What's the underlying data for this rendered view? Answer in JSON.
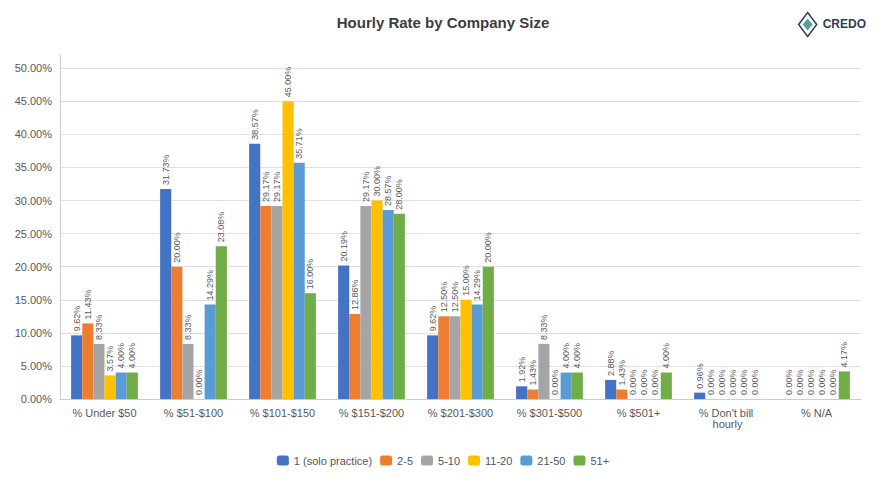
{
  "chart_data": {
    "type": "bar",
    "title": "Hourly Rate by Company Size",
    "categories": [
      "% Under $50",
      "% $51-$100",
      "% $101-$150",
      "% $151-$200",
      "% $201-$300",
      "% $301-$500",
      "% $501+",
      "% Don't bill hourly",
      "% N/A"
    ],
    "series": [
      {
        "name": "1 (solo practice)",
        "color": "#4472c4",
        "values": [
          0.0962,
          0.3173,
          0.3857,
          0.2019,
          0.0962,
          0.0192,
          0.0288,
          0.0096,
          0
        ],
        "value_labels": [
          "9.62%",
          "31.73%",
          "38.57%",
          "20.19%",
          "9.62%",
          "1.92%",
          "2.88%",
          "0.96%",
          "0.00%"
        ]
      },
      {
        "name": "2-5",
        "color": "#ed7d31",
        "values": [
          0.1143,
          0.2,
          0.2917,
          0.1286,
          0.125,
          0.0143,
          0.0143,
          0,
          0
        ],
        "value_labels": [
          "11.43%",
          "20.00%",
          "29.17%",
          "12.86%",
          "12.50%",
          "1.43%",
          "1.43%",
          "0.00%",
          "0.00%"
        ]
      },
      {
        "name": "5-10",
        "color": "#a5a5a5",
        "values": [
          0.0833,
          0.0833,
          0.2917,
          0.2917,
          0.125,
          0.0833,
          0,
          0,
          0
        ],
        "value_labels": [
          "8.33%",
          "8.33%",
          "29.17%",
          "29.17%",
          "12.50%",
          "8.33%",
          "0.00%",
          "0.00%",
          "0.00%"
        ]
      },
      {
        "name": "11-20",
        "color": "#ffc000",
        "values": [
          0.0357,
          0,
          0.45,
          0.3,
          0.15,
          0,
          0,
          0,
          0
        ],
        "value_labels": [
          "3.57%",
          "0.00%",
          "45.00%",
          "30.00%",
          "15.00%",
          "0.00%",
          "0.00%",
          "0.00%",
          "0.00%"
        ]
      },
      {
        "name": "21-50",
        "color": "#5b9bd5",
        "values": [
          0.04,
          0.1429,
          0.3571,
          0.2857,
          0.1429,
          0.04,
          0,
          0,
          0
        ],
        "value_labels": [
          "4.00%",
          "14.29%",
          "35.71%",
          "28.57%",
          "14.29%",
          "4.00%",
          "0.00%",
          "0.00%",
          "0.00%"
        ]
      },
      {
        "name": "51+",
        "color": "#70ad47",
        "values": [
          0.04,
          0.2308,
          0.16,
          0.28,
          0.2,
          0.04,
          0.04,
          0,
          0.0417
        ],
        "value_labels": [
          "4.00%",
          "23.08%",
          "16.00%",
          "28.00%",
          "20.00%",
          "4.00%",
          "4.00%",
          "0.00%",
          "4.17%"
        ]
      }
    ],
    "ylim": [
      0,
      0.52
    ],
    "yticks": [
      {
        "value": 0.0,
        "label": "0.00%"
      },
      {
        "value": 0.05,
        "label": "5.00%"
      },
      {
        "value": 0.1,
        "label": "10.00%"
      },
      {
        "value": 0.15,
        "label": "15.00%"
      },
      {
        "value": 0.2,
        "label": "20.00%"
      },
      {
        "value": 0.25,
        "label": "25.00%"
      },
      {
        "value": 0.3,
        "label": "30.00%"
      },
      {
        "value": 0.35,
        "label": "35.00%"
      },
      {
        "value": 0.4,
        "label": "40.00%"
      },
      {
        "value": 0.45,
        "label": "45.00%"
      },
      {
        "value": 0.5,
        "label": "50.00%"
      }
    ],
    "grid": true,
    "legend": "bottom",
    "data_labels": true,
    "annotations": [
      "CREDO"
    ]
  }
}
